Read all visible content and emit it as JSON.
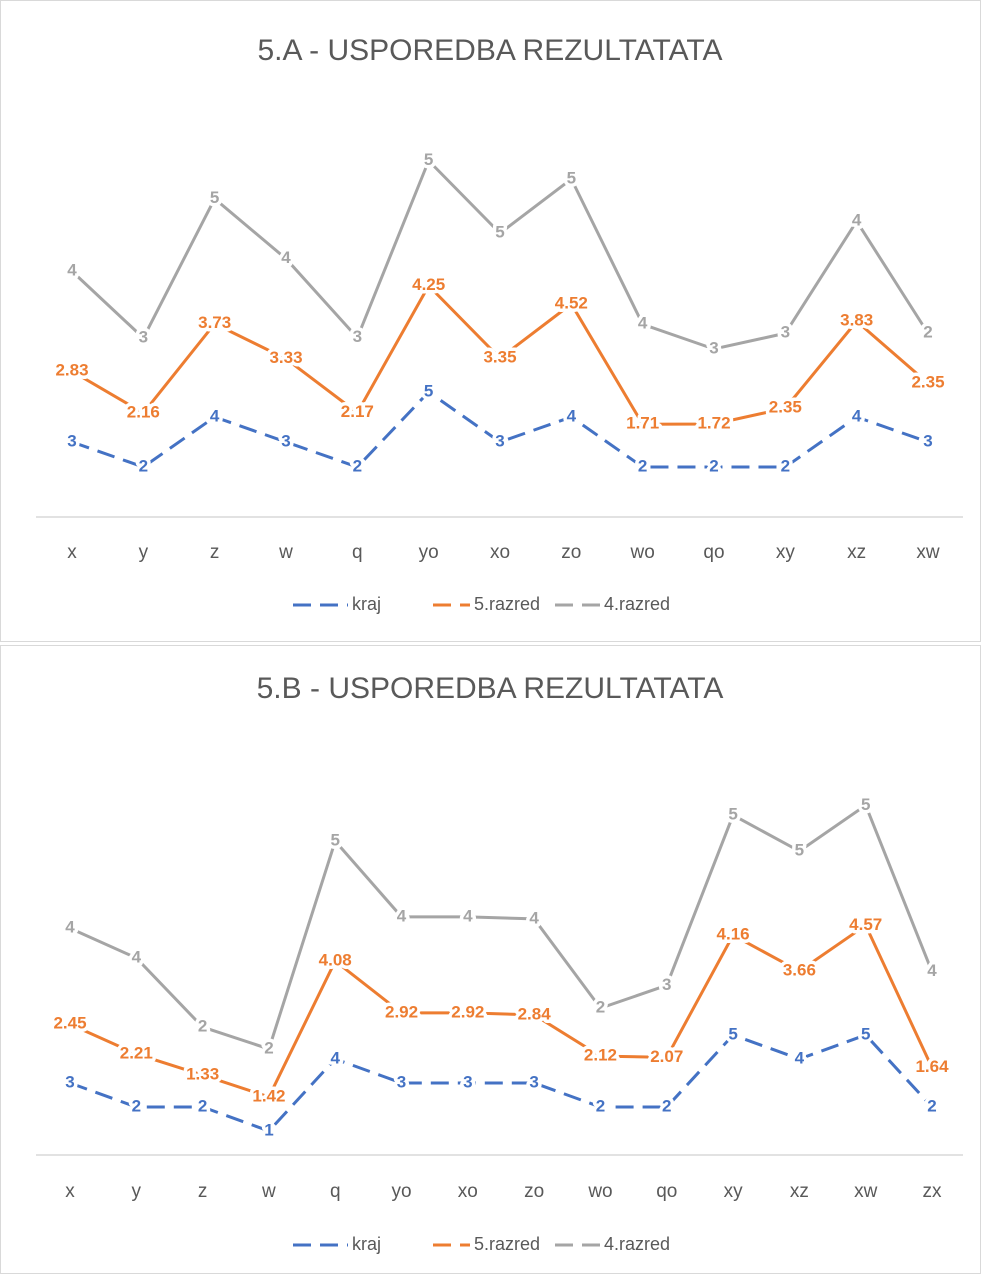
{
  "chart_data": [
    {
      "type": "line",
      "stacked": true,
      "title": "5.A - USPOREDBA REZULTATATA",
      "categories": [
        "x",
        "y",
        "z",
        "w",
        "q",
        "yo",
        "xo",
        "zo",
        "wo",
        "qo",
        "xy",
        "xz",
        "xw"
      ],
      "ylim": [
        0,
        16
      ],
      "series": [
        {
          "name": "kraj",
          "color": "#4472c4",
          "dashed": true,
          "values": [
            3,
            2,
            4,
            3,
            2,
            5,
            3,
            4,
            2,
            2,
            2,
            4,
            3
          ]
        },
        {
          "name": "5.razred",
          "color": "#ed7d31",
          "values": [
            2.83,
            2.16,
            3.73,
            3.33,
            2.17,
            4.25,
            3.35,
            4.52,
            1.71,
            1.72,
            2.35,
            3.83,
            2.35
          ]
        },
        {
          "name": "4.razred",
          "color": "#a5a5a5",
          "values": [
            4,
            3,
            5,
            4,
            3,
            5,
            5,
            5,
            4,
            3,
            3,
            4,
            2
          ]
        }
      ]
    },
    {
      "type": "line",
      "stacked": true,
      "title": "5.B - USPOREDBA REZULTATATA",
      "categories": [
        "x",
        "y",
        "z",
        "w",
        "q",
        "yo",
        "xo",
        "zo",
        "wo",
        "qo",
        "xy",
        "xz",
        "xw",
        "zx"
      ],
      "ylim": [
        0,
        16
      ],
      "series": [
        {
          "name": "kraj",
          "color": "#4472c4",
          "dashed": true,
          "values": [
            3,
            2,
            2,
            1,
            4,
            3,
            3,
            3,
            2,
            2,
            5,
            4,
            5,
            2
          ]
        },
        {
          "name": "5.razred",
          "color": "#ed7d31",
          "values": [
            2.45,
            2.21,
            1.33,
            1.42,
            4.08,
            2.92,
            2.92,
            2.84,
            2.12,
            2.07,
            4.16,
            3.66,
            4.57,
            1.64
          ]
        },
        {
          "name": "4.razred",
          "color": "#a5a5a5",
          "values": [
            4,
            4,
            2,
            2,
            5,
            4,
            4,
            4,
            2,
            3,
            5,
            5,
            5,
            4
          ]
        }
      ]
    }
  ]
}
